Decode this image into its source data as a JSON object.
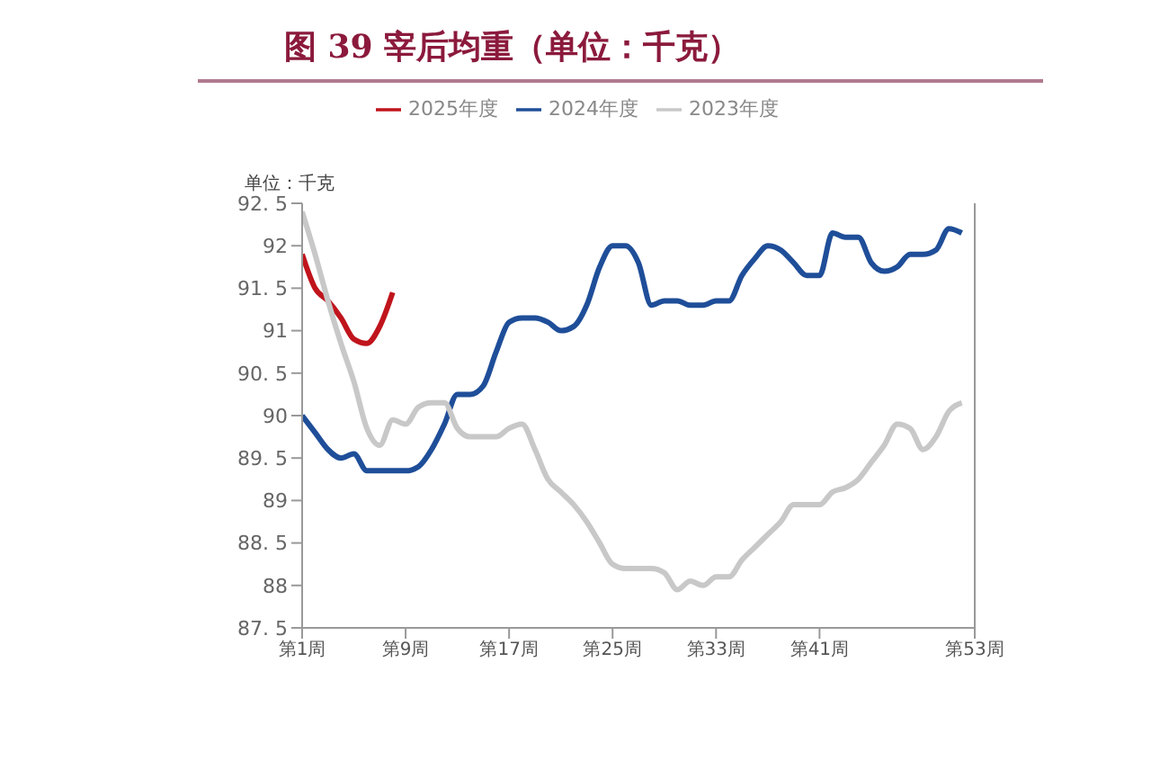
{
  "chart_data": {
    "type": "line",
    "title": "图 39 宰后均重（单位：千克）",
    "ylabel": "单位：千克",
    "categories": [
      "第1周",
      null,
      null,
      null,
      null,
      null,
      null,
      null,
      "第9周",
      null,
      null,
      null,
      null,
      null,
      null,
      null,
      "第17周",
      null,
      null,
      null,
      null,
      null,
      null,
      null,
      "第25周",
      null,
      null,
      null,
      null,
      null,
      null,
      null,
      "第33周",
      null,
      null,
      null,
      null,
      null,
      null,
      null,
      "第41周",
      null,
      null,
      null,
      null,
      null,
      null,
      null,
      null,
      null,
      null,
      null,
      "第53周"
    ],
    "series": [
      {
        "name": "2025年度",
        "color": "#c0141c",
        "values": [
          91.9,
          91.5,
          91.35,
          91.15,
          90.9,
          90.85,
          91.05,
          91.45,
          null,
          null,
          null,
          null,
          null,
          null,
          null,
          null,
          null,
          null,
          null,
          null,
          null,
          null,
          null,
          null,
          null,
          null,
          null,
          null,
          null,
          null,
          null,
          null,
          null,
          null,
          null,
          null,
          null,
          null,
          null,
          null,
          null,
          null,
          null,
          null,
          null,
          null,
          null,
          null,
          null,
          null,
          null,
          null,
          null
        ]
      },
      {
        "name": "2024年度",
        "color": "#1f4e99",
        "values": [
          90.0,
          89.8,
          89.6,
          89.5,
          89.55,
          89.35,
          89.35,
          89.35,
          89.35,
          89.4,
          89.6,
          89.9,
          90.25,
          90.25,
          90.35,
          90.75,
          91.1,
          91.15,
          91.15,
          91.1,
          91.0,
          91.05,
          91.3,
          91.75,
          92.0,
          92.0,
          91.8,
          91.3,
          91.35,
          91.35,
          91.3,
          91.3,
          91.35,
          91.35,
          91.65,
          91.85,
          92.0,
          91.95,
          91.8,
          91.65,
          91.65,
          92.15,
          92.1,
          92.1,
          91.8,
          91.7,
          91.75,
          91.9,
          91.9,
          91.95,
          92.2,
          92.15,
          null
        ]
      },
      {
        "name": "2023年度",
        "color": "#c8c8c8",
        "values": [
          92.4,
          91.9,
          91.35,
          90.85,
          90.4,
          89.85,
          89.65,
          89.95,
          89.9,
          90.1,
          90.15,
          90.15,
          89.85,
          89.75,
          89.75,
          89.75,
          89.85,
          89.9,
          89.6,
          89.25,
          89.1,
          88.95,
          88.75,
          88.5,
          88.25,
          88.2,
          88.2,
          88.2,
          88.15,
          87.95,
          88.05,
          88.0,
          88.1,
          88.1,
          88.3,
          88.45,
          88.6,
          88.75,
          88.95,
          88.95,
          88.95,
          89.1,
          89.15,
          89.25,
          89.45,
          89.65,
          89.9,
          89.85,
          89.6,
          89.75,
          90.05,
          90.15,
          null
        ]
      }
    ],
    "ylim": [
      87.5,
      92.5
    ],
    "yticks": [
      {
        "value": 87.5,
        "label": "87. 5"
      },
      88,
      {
        "value": 88.5,
        "label": "88. 5"
      },
      89,
      {
        "value": 89.5,
        "label": "89. 5"
      },
      90,
      {
        "value": 90.5,
        "label": "90. 5"
      },
      91,
      {
        "value": 91.5,
        "label": "91. 5"
      },
      92,
      {
        "value": 92.5,
        "label": "92. 5"
      }
    ],
    "grid": false,
    "legend": "top",
    "marker": "none",
    "line_style": "solid"
  }
}
